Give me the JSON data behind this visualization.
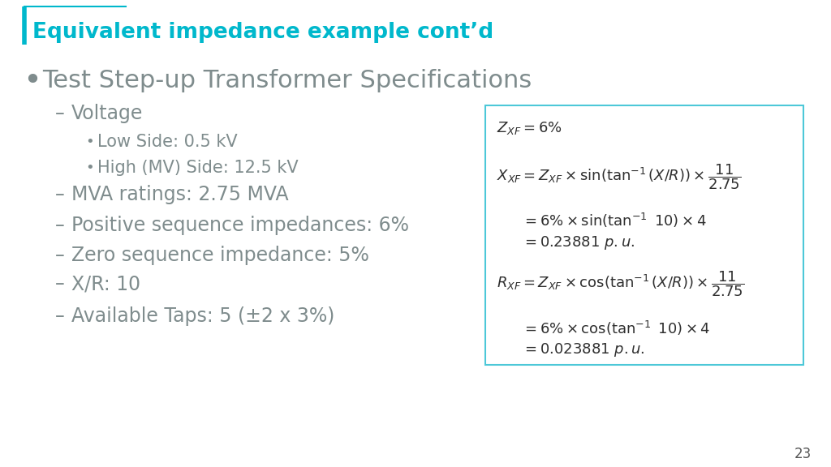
{
  "title": "Equivalent impedance example cont’d",
  "title_color": "#00B8CC",
  "background_color": "#ffffff",
  "accent_color": "#7F8C8D",
  "teal_color": "#00B8CC",
  "bullet_color": "#7F8C8D",
  "page_number": "23",
  "bullet1": "Test Step-up Transformer Specifications",
  "sub_bullets": [
    "Voltage",
    "MVA ratings: 2.75 MVA",
    "Positive sequence impedances: 6%",
    "Zero sequence impedance: 5%",
    "X/R: 10",
    "Available Taps: 5 (±2 x 3%)"
  ],
  "sub_sub_bullets": [
    "Low Side: 0.5 kV",
    "High (MV) Side: 12.5 kV"
  ],
  "box_border_color": "#4DC8D8",
  "box_bg_color": "#ffffff",
  "eq_color": "#2F2F2F"
}
